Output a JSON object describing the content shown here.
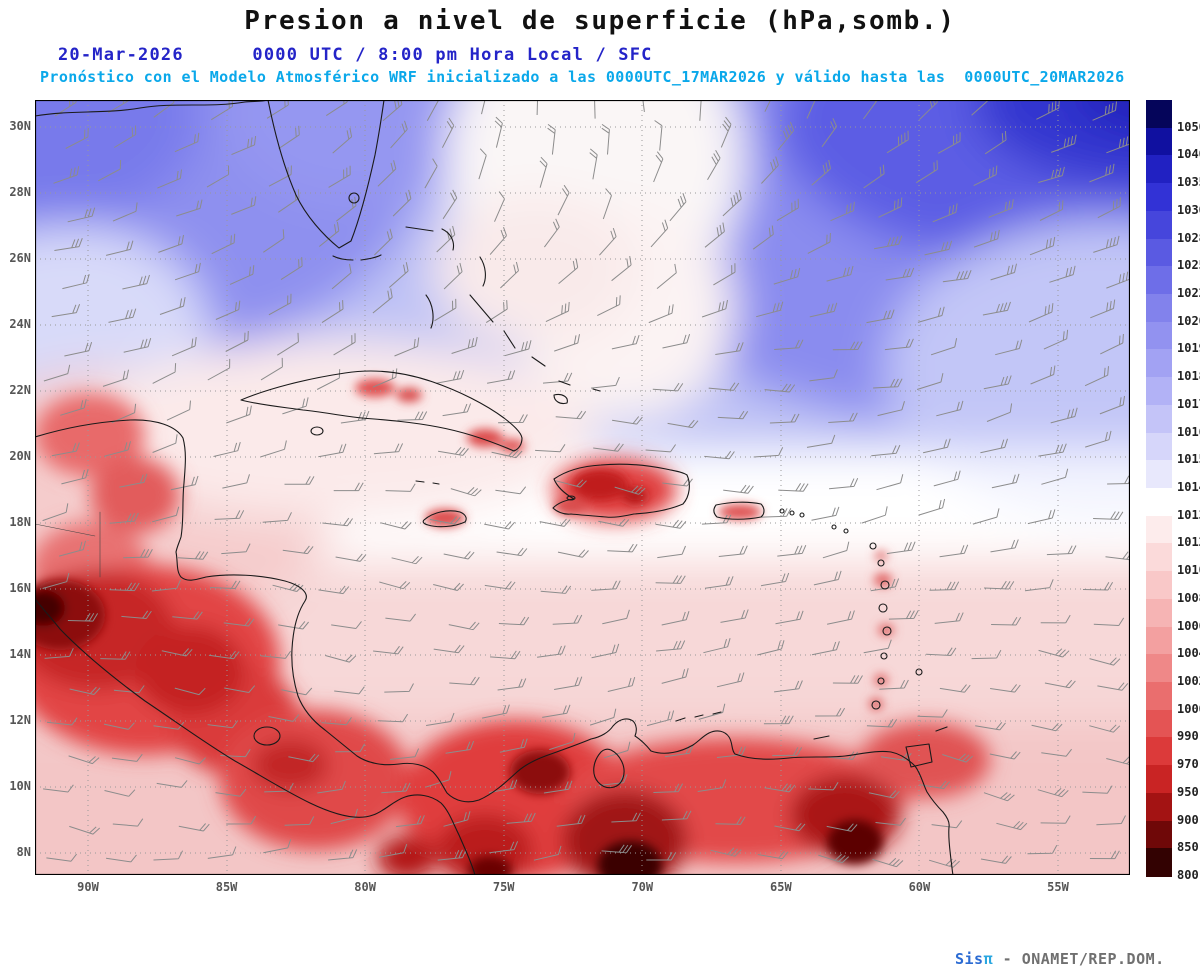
{
  "header": {
    "title": "Presion a nivel de superficie (hPa,somb.)",
    "datetime_line": "20-Mar-2026      0000 UTC / 8:00 pm Hora Local / SFC",
    "forecast_line": "Pronóstico con el Modelo Atmosférico WRF inicializado a las 0000UTC_17MAR2026 y válido hasta las  0000UTC_20MAR2026"
  },
  "map": {
    "lat_labels": [
      "30N",
      "28N",
      "26N",
      "24N",
      "22N",
      "20N",
      "18N",
      "16N",
      "14N",
      "12N",
      "10N",
      "8N"
    ],
    "lon_labels": [
      "90W",
      "85W",
      "80W",
      "75W",
      "70W",
      "65W",
      "60W",
      "55W"
    ]
  },
  "colorbar": {
    "levels": [
      "1050",
      "1040",
      "1035",
      "1030",
      "1028",
      "1025",
      "1022",
      "1020",
      "1019",
      "1018",
      "1017",
      "1016",
      "1015",
      "1014",
      "1013",
      "1012",
      "1010",
      "1008",
      "1006",
      "1004",
      "1002",
      "1000",
      "990",
      "970",
      "950",
      "900",
      "850",
      "800"
    ],
    "colors": [
      "#05055a",
      "#1010a0",
      "#2121c2",
      "#3232d6",
      "#4646dc",
      "#5a5ae2",
      "#6e6ee8",
      "#8282ec",
      "#9292f0",
      "#a2a2f3",
      "#b2b2f6",
      "#c4c4f8",
      "#d6d6fa",
      "#e8e8fc",
      "#ffffff",
      "#fdecec",
      "#fbdada",
      "#f9c8c8",
      "#f6b4b4",
      "#f3a0a0",
      "#ef8888",
      "#ea6e6e",
      "#e45454",
      "#dc3a3a",
      "#c92424",
      "#a31313",
      "#6f0808",
      "#330202"
    ]
  },
  "watermark": {
    "sis": "Sis",
    "pi": "π",
    "rest": " - ONAMET/REP.DOM."
  },
  "chart_data": {
    "type": "heatmap",
    "title": "Presion a nivel de superficie (hPa,somb.)",
    "variable": "surface pressure (shaded) with 10 m wind barbs",
    "units": "hPa",
    "model": "WRF",
    "init_time": "0000UTC_17MAR2026",
    "valid_time": "0000UTC_20MAR2026",
    "valid_local": "20-Mar-2026 0000 UTC / 8:00 pm Hora Local / SFC",
    "x_axis": {
      "label": "Longitude",
      "ticks": [
        "90W",
        "85W",
        "80W",
        "75W",
        "70W",
        "65W",
        "60W",
        "55W"
      ]
    },
    "y_axis": {
      "label": "Latitude",
      "ticks": [
        "30N",
        "28N",
        "26N",
        "24N",
        "22N",
        "20N",
        "18N",
        "16N",
        "14N",
        "12N",
        "10N",
        "8N"
      ]
    },
    "colorbar_levels": [
      1050,
      1040,
      1035,
      1030,
      1028,
      1025,
      1022,
      1020,
      1019,
      1018,
      1017,
      1016,
      1015,
      1014,
      1013,
      1012,
      1010,
      1008,
      1006,
      1004,
      1002,
      1000,
      990,
      970,
      950,
      900,
      850,
      800
    ],
    "grid": "dotted",
    "legend_position": "right",
    "overlays": [
      "wind-barbs",
      "coastlines"
    ],
    "winds": "Easterly to northeasterly trade-wind barbs (~10-20 kt) across the basin; stronger NE flow over the northeast Atlantic ridge",
    "features": [
      {
        "region": "Northeast Atlantic corner (upper right)",
        "pressure_hPa": "1028-1035 ridge (darkest blue)"
      },
      {
        "region": "Gulf of Mexico / Florida / Bahamas",
        "pressure_hPa": "1018-1025 high pressure (blue)"
      },
      {
        "region": "Weak inverted trough near 72W north of 24N",
        "pressure_hPa": "1014-1016 (white/light lavender)"
      },
      {
        "region": "Central Caribbean band 14N-20N",
        "pressure_hPa": "1013-1015 (white)"
      },
      {
        "region": "Cuba / Jamaica / Puerto Rico terrain spots",
        "pressure_hPa": "1004-1010 (red spots)"
      },
      {
        "region": "Hispaniola interior",
        "pressure_hPa": "1000-1008 terrain-induced low (red)"
      },
      {
        "region": "Honduras-Nicaragua highlands (lower left)",
        "pressure_hPa": "below 970 (dark red to near-black)"
      },
      {
        "region": "Colombia / Venezuela Andes (bottom)",
        "pressure_hPa": "below 900 (maroon/near-black cores)"
      }
    ]
  }
}
